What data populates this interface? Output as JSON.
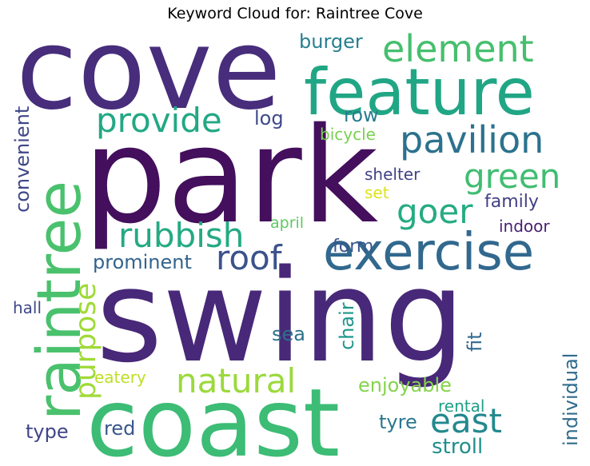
{
  "title": "Keyword Cloud for: Raintree Cove",
  "words": [
    {
      "text": "cove",
      "color": "#472d7b"
    },
    {
      "text": "park",
      "color": "#440f5c"
    },
    {
      "text": "swing",
      "color": "#482878"
    },
    {
      "text": "coast",
      "color": "#3cbc75"
    },
    {
      "text": "feature",
      "color": "#21a685"
    },
    {
      "text": "raintree",
      "color": "#4ac16d"
    },
    {
      "text": "exercise",
      "color": "#31688e"
    },
    {
      "text": "element",
      "color": "#46bf6e"
    },
    {
      "text": "pavilion",
      "color": "#2c728e"
    },
    {
      "text": "provide",
      "color": "#22a884"
    },
    {
      "text": "green",
      "color": "#40bd72"
    },
    {
      "text": "goer",
      "color": "#25ab82"
    },
    {
      "text": "rubbish",
      "color": "#24aa83"
    },
    {
      "text": "roof",
      "color": "#3b528b"
    },
    {
      "text": "natural",
      "color": "#9bd93c"
    },
    {
      "text": "east",
      "color": "#23898e"
    },
    {
      "text": "purpose",
      "color": "#a0da39"
    },
    {
      "text": "prominent",
      "color": "#33638d"
    },
    {
      "text": "burger",
      "color": "#277f8e"
    },
    {
      "text": "log",
      "color": "#3e4989"
    },
    {
      "text": "row",
      "color": "#287c8e"
    },
    {
      "text": "bicycle",
      "color": "#7ad151"
    },
    {
      "text": "shelter",
      "color": "#404387"
    },
    {
      "text": "set",
      "color": "#dde318"
    },
    {
      "text": "family",
      "color": "#423f85"
    },
    {
      "text": "indoor",
      "color": "#481f70"
    },
    {
      "text": "april",
      "color": "#5ec962"
    },
    {
      "text": "form",
      "color": "#3a548c"
    },
    {
      "text": "convenient",
      "color": "#3f4788"
    },
    {
      "text": "hall",
      "color": "#3f4889"
    },
    {
      "text": "sea",
      "color": "#2c728e"
    },
    {
      "text": "chair",
      "color": "#1f978b"
    },
    {
      "text": "fit",
      "color": "#31688e"
    },
    {
      "text": "individual",
      "color": "#2f6c8e"
    },
    {
      "text": "eatery",
      "color": "#bddf26"
    },
    {
      "text": "enjoyable",
      "color": "#84d44b"
    },
    {
      "text": "rental",
      "color": "#1fa088"
    },
    {
      "text": "tyre",
      "color": "#2a778e"
    },
    {
      "text": "type",
      "color": "#404588"
    },
    {
      "text": "red",
      "color": "#39568c"
    },
    {
      "text": "stroll",
      "color": "#218f8d"
    }
  ]
}
